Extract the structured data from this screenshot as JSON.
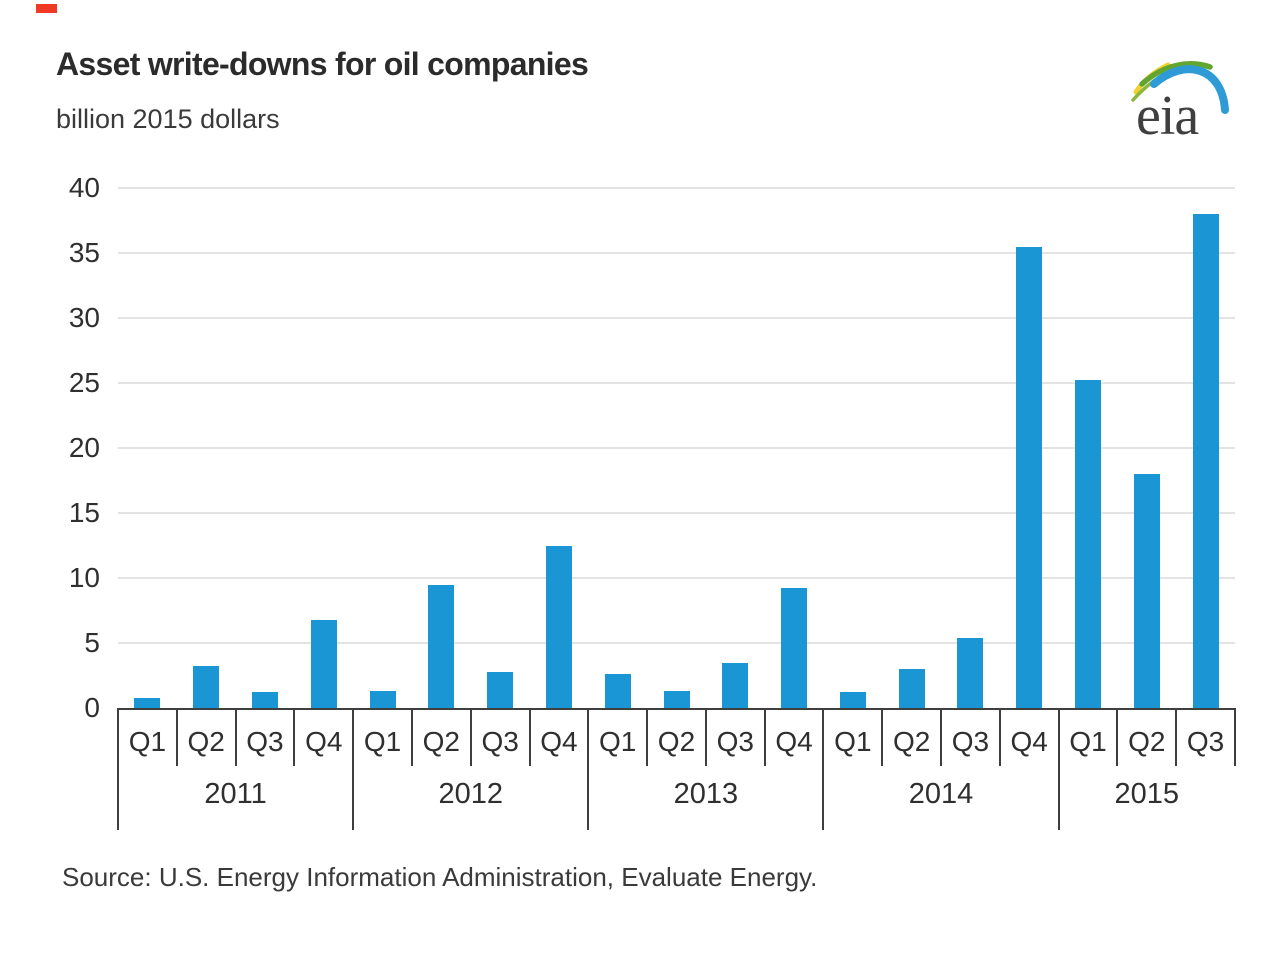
{
  "header": {
    "title": "Asset write-downs for oil companies",
    "subtitle": "billion 2015 dollars",
    "logo_text": "eia"
  },
  "source": "Source:  U.S. Energy Information Administration, Evaluate Energy.",
  "colors": {
    "bar": "#1a96d4",
    "gridline": "#e3e3e3",
    "axis": "#3f3f3f",
    "logo_blue": "#2e9bd6",
    "logo_green": "#63a62f",
    "logo_yellow": "#f2d12e",
    "artifact_red": "#ee3a24"
  },
  "chart_data": {
    "type": "bar",
    "title": "Asset write-downs for oil companies",
    "ylabel": "billion 2015 dollars",
    "ylim": [
      0,
      40
    ],
    "yticks": [
      0,
      5,
      10,
      15,
      20,
      25,
      30,
      35,
      40
    ],
    "grid": true,
    "legend": "none",
    "groups": [
      {
        "year": "2011",
        "quarters": [
          "Q1",
          "Q2",
          "Q3",
          "Q4"
        ],
        "values": [
          0.8,
          3.2,
          1.2,
          6.8
        ]
      },
      {
        "year": "2012",
        "quarters": [
          "Q1",
          "Q2",
          "Q3",
          "Q4"
        ],
        "values": [
          1.3,
          9.5,
          2.8,
          12.5
        ]
      },
      {
        "year": "2013",
        "quarters": [
          "Q1",
          "Q2",
          "Q3",
          "Q4"
        ],
        "values": [
          2.6,
          1.3,
          3.5,
          9.2
        ]
      },
      {
        "year": "2014",
        "quarters": [
          "Q1",
          "Q2",
          "Q3",
          "Q4"
        ],
        "values": [
          1.2,
          3.0,
          5.4,
          35.5
        ]
      },
      {
        "year": "2015",
        "quarters": [
          "Q1",
          "Q2",
          "Q3"
        ],
        "values": [
          25.2,
          18.0,
          38.0
        ]
      }
    ]
  }
}
